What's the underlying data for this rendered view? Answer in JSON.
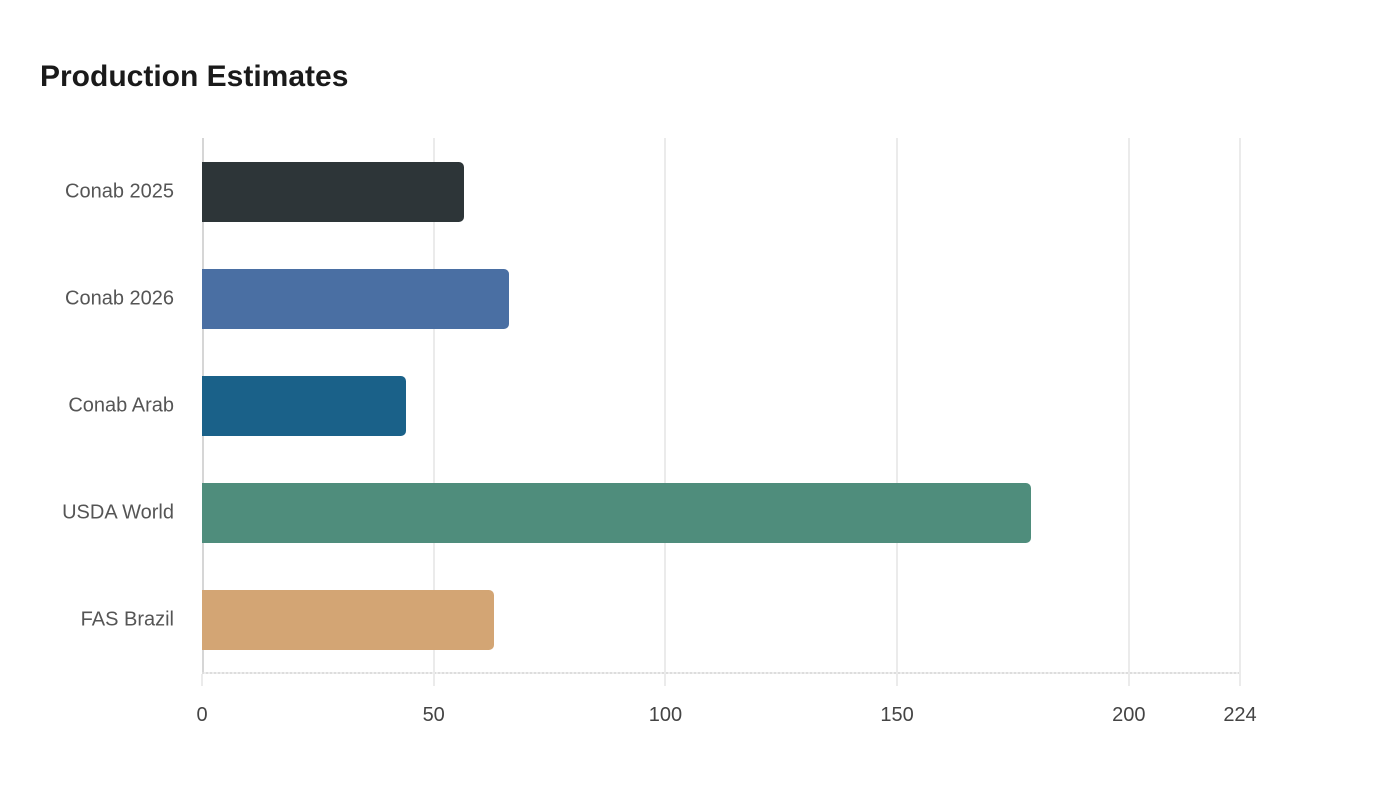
{
  "title": "Production Estimates",
  "chart_data": {
    "type": "bar",
    "orientation": "horizontal",
    "title": "Production Estimates",
    "xlabel": "",
    "ylabel": "",
    "categories": [
      "Conab 2025",
      "Conab 2026",
      "Conab Arab",
      "USDA World",
      "FAS Brazil"
    ],
    "values": [
      56.5,
      66.3,
      44.0,
      178.9,
      63.0
    ],
    "colors": [
      "#2d3538",
      "#4a6fa3",
      "#1a6189",
      "#4f8d7c",
      "#d3a574"
    ],
    "xlim": [
      0,
      224
    ],
    "xticks": [
      0,
      50,
      100,
      150,
      200,
      224
    ],
    "grid": true,
    "legend": "none"
  },
  "axis": {
    "tick_labels": [
      "0",
      "50",
      "100",
      "150",
      "200",
      "224"
    ]
  }
}
